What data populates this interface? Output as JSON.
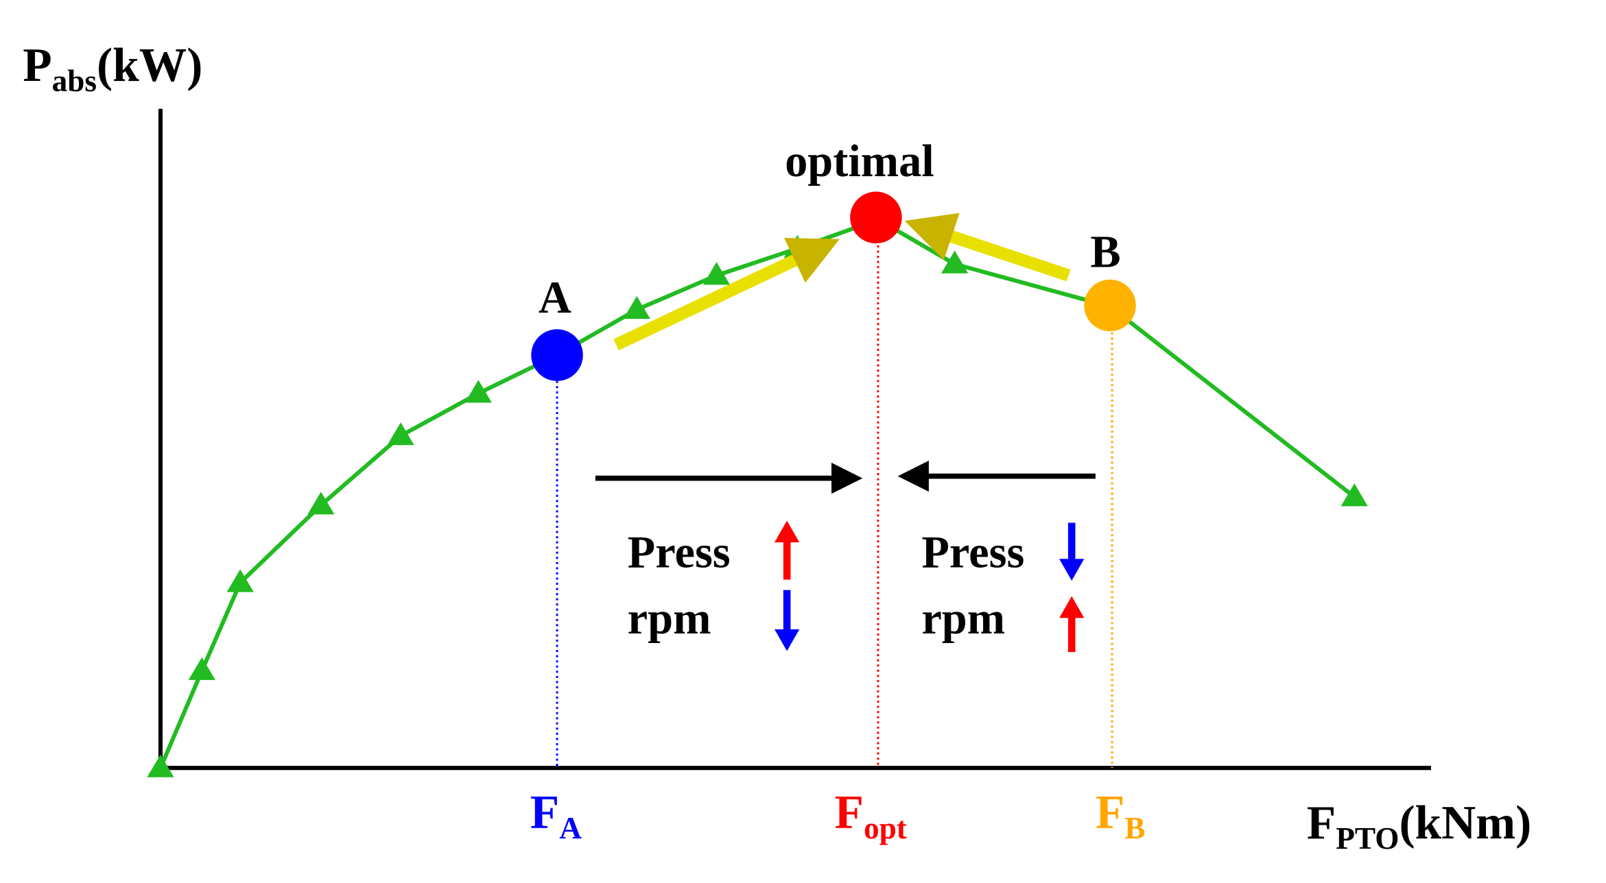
{
  "y_axis_label": {
    "main": "P",
    "sub": "abs",
    "unit": "(kW)"
  },
  "x_axis_label": {
    "main": "F",
    "sub": "PTO",
    "unit": "(kNm)"
  },
  "points": {
    "optimal": "optimal",
    "a": "A",
    "b": "B"
  },
  "force_labels": [
    {
      "main": "F",
      "sub": "A"
    },
    {
      "main": "F",
      "sub": "opt"
    },
    {
      "main": "F",
      "sub": "B"
    }
  ],
  "left_note": {
    "line1": "Press",
    "line2": "rpm"
  },
  "right_note": {
    "line1": "Press",
    "line2": "rpm"
  }
}
